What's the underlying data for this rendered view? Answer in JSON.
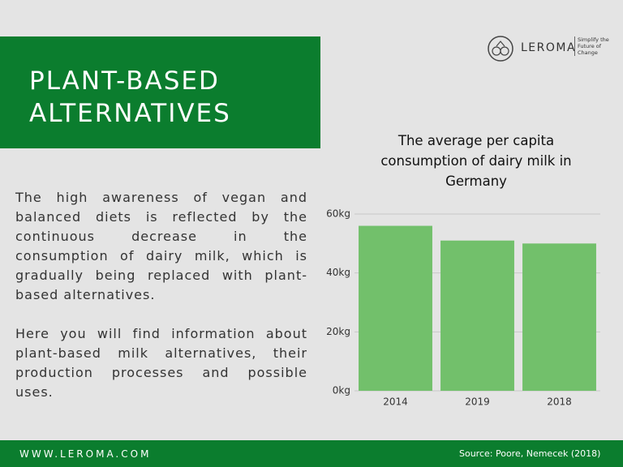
{
  "header": {
    "title": "PLANT-BASED ALTERNATIVES"
  },
  "logo": {
    "name": "LEROMA",
    "tagline": "Simplify the Future of Change"
  },
  "body": {
    "paragraphs": [
      "The high awareness of vegan and balanced diets is reflected by the continuous decrease in the consumption of dairy milk, which is gradually being replaced with plant-based alternatives.",
      "Here you will find information about plant-based milk alternatives, their production processes and possible uses."
    ]
  },
  "footer": {
    "website": "WWW.LEROMA.COM",
    "source": "Source: Poore, Nemecek (2018)"
  },
  "chart_data": {
    "type": "bar",
    "title": "The average per capita consumption of dairy milk in Germany",
    "categories": [
      "2014",
      "2019",
      "2018"
    ],
    "values": [
      56,
      51,
      50
    ],
    "color": "#72c06b",
    "ylim": [
      0,
      60
    ],
    "yticks": [
      {
        "value": 0,
        "label": "0kg"
      },
      {
        "value": 20,
        "label": "20kg"
      },
      {
        "value": 40,
        "label": "40kg"
      },
      {
        "value": 60,
        "label": "60kg"
      }
    ],
    "grid": true
  }
}
